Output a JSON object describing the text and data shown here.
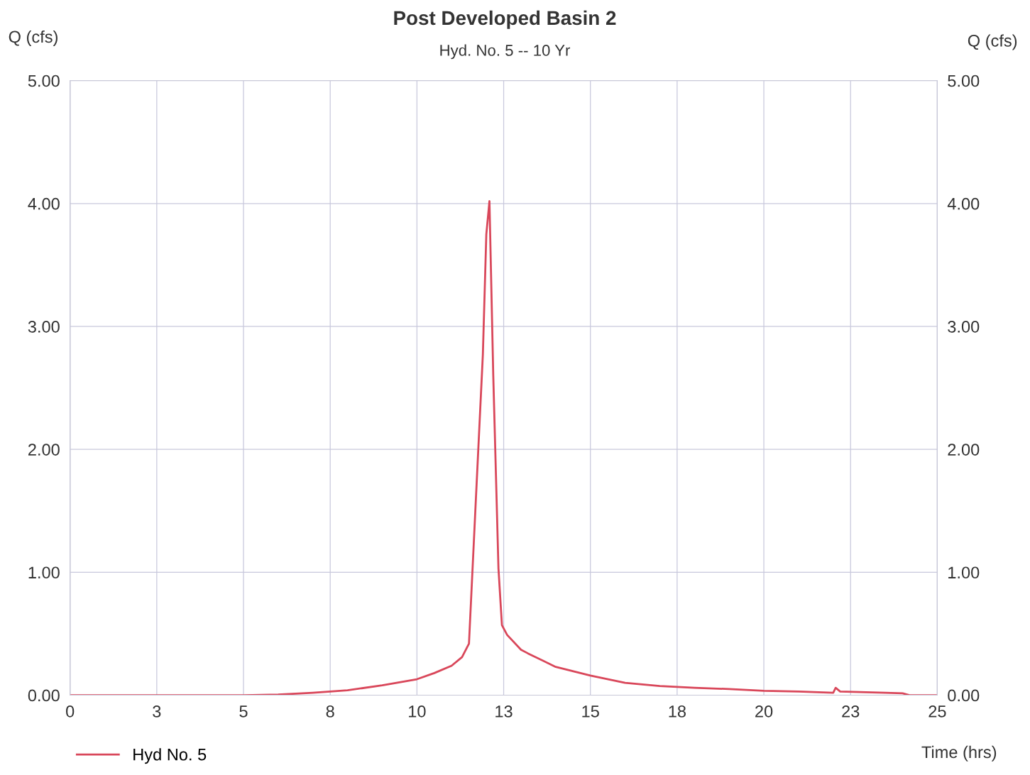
{
  "chart_data": {
    "type": "line",
    "title": "Post Developed Basin 2",
    "subtitle": "Hyd. No. 5 -- 10 Yr",
    "xlabel": "Time (hrs)",
    "ylabel": "Q (cfs)",
    "y2label": "Q (cfs)",
    "x": [
      0,
      2,
      4,
      5,
      6,
      7,
      8,
      9,
      10,
      10.5,
      11,
      11.3,
      11.5,
      11.7,
      11.9,
      12.0,
      12.09,
      12.2,
      12.35,
      12.45,
      12.6,
      13.0,
      13.2,
      14,
      15,
      16,
      17,
      18,
      19,
      20,
      21,
      22.0,
      22.07,
      22.2,
      23.5,
      24.0,
      24.2,
      25
    ],
    "series": [
      {
        "name": "Hyd No. 5",
        "color": "#d9475a",
        "values": [
          0.0,
          0.0,
          0.0,
          0.0,
          0.005,
          0.02,
          0.04,
          0.08,
          0.13,
          0.18,
          0.24,
          0.31,
          0.42,
          1.6,
          2.77,
          3.75,
          4.02,
          2.6,
          1.03,
          0.57,
          0.49,
          0.37,
          0.34,
          0.23,
          0.16,
          0.1,
          0.075,
          0.06,
          0.05,
          0.035,
          0.03,
          0.02,
          0.06,
          0.03,
          0.02,
          0.015,
          0.0,
          0.0
        ]
      }
    ],
    "xlim": [
      0,
      25
    ],
    "ylim": [
      0,
      5
    ],
    "y2lim": [
      0,
      5
    ],
    "xticks": [
      0,
      {
        "value": 2.5,
        "label": "3"
      },
      5,
      {
        "value": 7.5,
        "label": "8"
      },
      10,
      {
        "value": 12.5,
        "label": "13"
      },
      15,
      {
        "value": 17.5,
        "label": "18"
      },
      20,
      {
        "value": 22.5,
        "label": "23"
      },
      25
    ],
    "yticks": [
      {
        "value": 0,
        "label": "0.00"
      },
      {
        "value": 1,
        "label": "1.00"
      },
      {
        "value": 2,
        "label": "2.00"
      },
      {
        "value": 3,
        "label": "3.00"
      },
      {
        "value": 4,
        "label": "4.00"
      },
      {
        "value": 5,
        "label": "5.00"
      }
    ],
    "y2ticks": [
      {
        "value": 0,
        "label": "0.00"
      },
      {
        "value": 1,
        "label": "1.00"
      },
      {
        "value": 2,
        "label": "2.00"
      },
      {
        "value": 3,
        "label": "3.00"
      },
      {
        "value": 4,
        "label": "4.00"
      },
      {
        "value": 5,
        "label": "5.00"
      }
    ],
    "grid": true,
    "legend": "bottom left",
    "marker": "none",
    "line_style": "solid"
  }
}
